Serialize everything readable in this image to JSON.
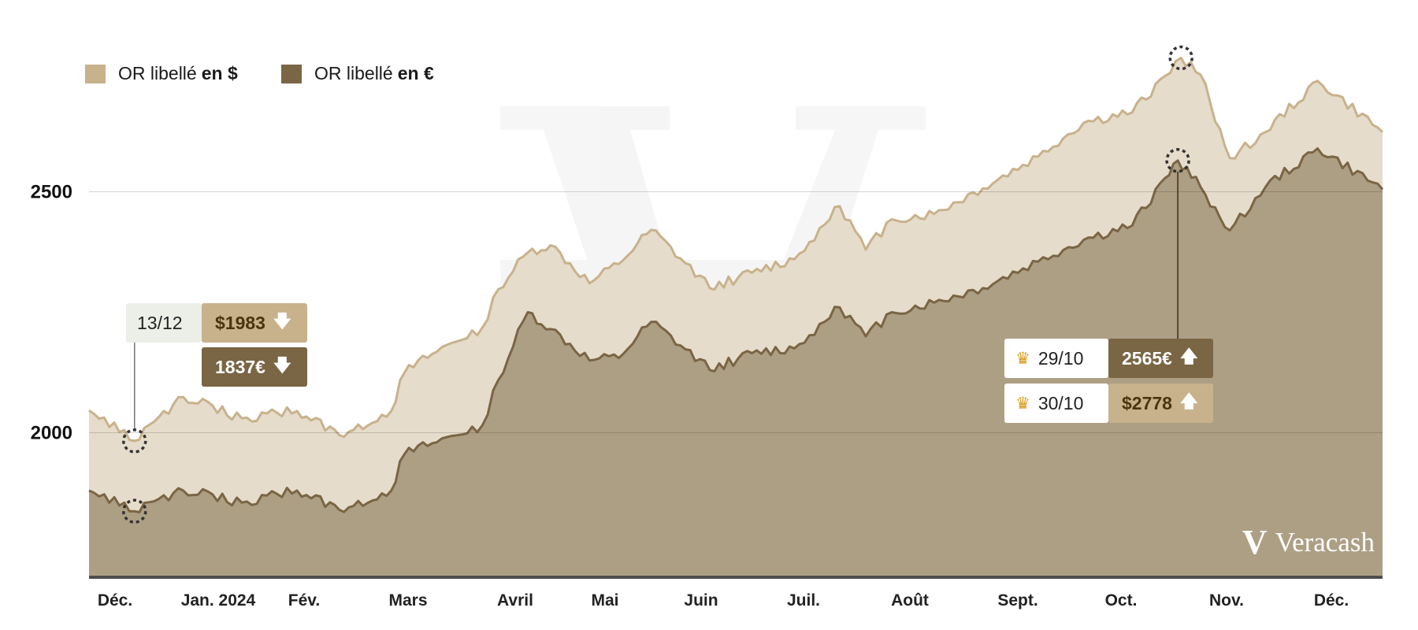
{
  "legend": [
    {
      "prefix": "OR libellé",
      "bold": "en $",
      "color": "#c8b28c"
    },
    {
      "prefix": "OR libellé",
      "bold": "en €",
      "color": "#7a6544"
    }
  ],
  "y_ticks": [
    "2500",
    "2000"
  ],
  "x_ticks": [
    "Déc.",
    "Jan. 2024",
    "Fév.",
    "Mars",
    "Avril",
    "Mai",
    "Juin",
    "Juil.",
    "Août",
    "Sept.",
    "Oct.",
    "Nov.",
    "Déc."
  ],
  "annotations": {
    "low": {
      "date": "13/12",
      "usd": "$1983",
      "eur": "1837€",
      "arrow": "🡇"
    },
    "high_eur": {
      "date": "29/10",
      "value": "2565€",
      "arrow": "🡅",
      "icon": "crown-icon"
    },
    "high_usd": {
      "date": "30/10",
      "value": "$2778",
      "arrow": "🡅",
      "icon": "crown-icon"
    }
  },
  "brand": {
    "name": "Veracash",
    "mark": "V"
  },
  "chart_data": {
    "type": "area",
    "title": "",
    "xlabel": "",
    "ylabel": "",
    "ylim": [
      1700,
      2800
    ],
    "grid": true,
    "legend_position": "top-left",
    "x_range": [
      "2023-11-29",
      "2024-12-31"
    ],
    "series": [
      {
        "name": "OR libellé en $",
        "color": "#c8b28c",
        "x": [
          "2023-11-29",
          "2023-12-13",
          "2023-12-28",
          "2024-01-15",
          "2024-02-01",
          "2024-02-14",
          "2024-03-01",
          "2024-03-05",
          "2024-03-15",
          "2024-03-29",
          "2024-04-03",
          "2024-04-12",
          "2024-04-19",
          "2024-05-01",
          "2024-05-10",
          "2024-05-20",
          "2024-06-07",
          "2024-06-20",
          "2024-07-03",
          "2024-07-17",
          "2024-07-25",
          "2024-08-02",
          "2024-08-15",
          "2024-08-30",
          "2024-09-16",
          "2024-09-30",
          "2024-10-15",
          "2024-10-25",
          "2024-10-30",
          "2024-11-05",
          "2024-11-14",
          "2024-11-25",
          "2024-12-11",
          "2024-12-31"
        ],
        "values": [
          2046,
          1983,
          2074,
          2030,
          2045,
          1995,
          2045,
          2124,
          2168,
          2218,
          2298,
          2374,
          2389,
          2310,
          2350,
          2421,
          2300,
          2332,
          2360,
          2470,
          2380,
          2443,
          2454,
          2507,
          2573,
          2643,
          2665,
          2740,
          2778,
          2743,
          2570,
          2624,
          2730,
          2624
        ]
      },
      {
        "name": "OR libellé en €",
        "color": "#7a6544",
        "x": [
          "2023-11-29",
          "2023-12-13",
          "2023-12-28",
          "2024-01-15",
          "2024-02-01",
          "2024-02-14",
          "2024-03-01",
          "2024-03-05",
          "2024-03-15",
          "2024-03-29",
          "2024-04-03",
          "2024-04-12",
          "2024-04-19",
          "2024-05-01",
          "2024-05-10",
          "2024-05-20",
          "2024-06-07",
          "2024-06-20",
          "2024-07-03",
          "2024-07-17",
          "2024-07-25",
          "2024-08-02",
          "2024-08-15",
          "2024-08-30",
          "2024-09-16",
          "2024-09-30",
          "2024-10-15",
          "2024-10-25",
          "2024-10-29",
          "2024-11-05",
          "2024-11-14",
          "2024-11-25",
          "2024-12-11",
          "2024-12-31"
        ],
        "values": [
          1880,
          1837,
          1880,
          1855,
          1880,
          1840,
          1880,
          1955,
          1980,
          2015,
          2110,
          2250,
          2215,
          2150,
          2155,
          2230,
          2130,
          2165,
          2175,
          2260,
          2200,
          2250,
          2270,
          2300,
          2355,
          2400,
          2430,
          2528,
          2565,
          2510,
          2420,
          2510,
          2590,
          2505
        ]
      }
    ]
  }
}
